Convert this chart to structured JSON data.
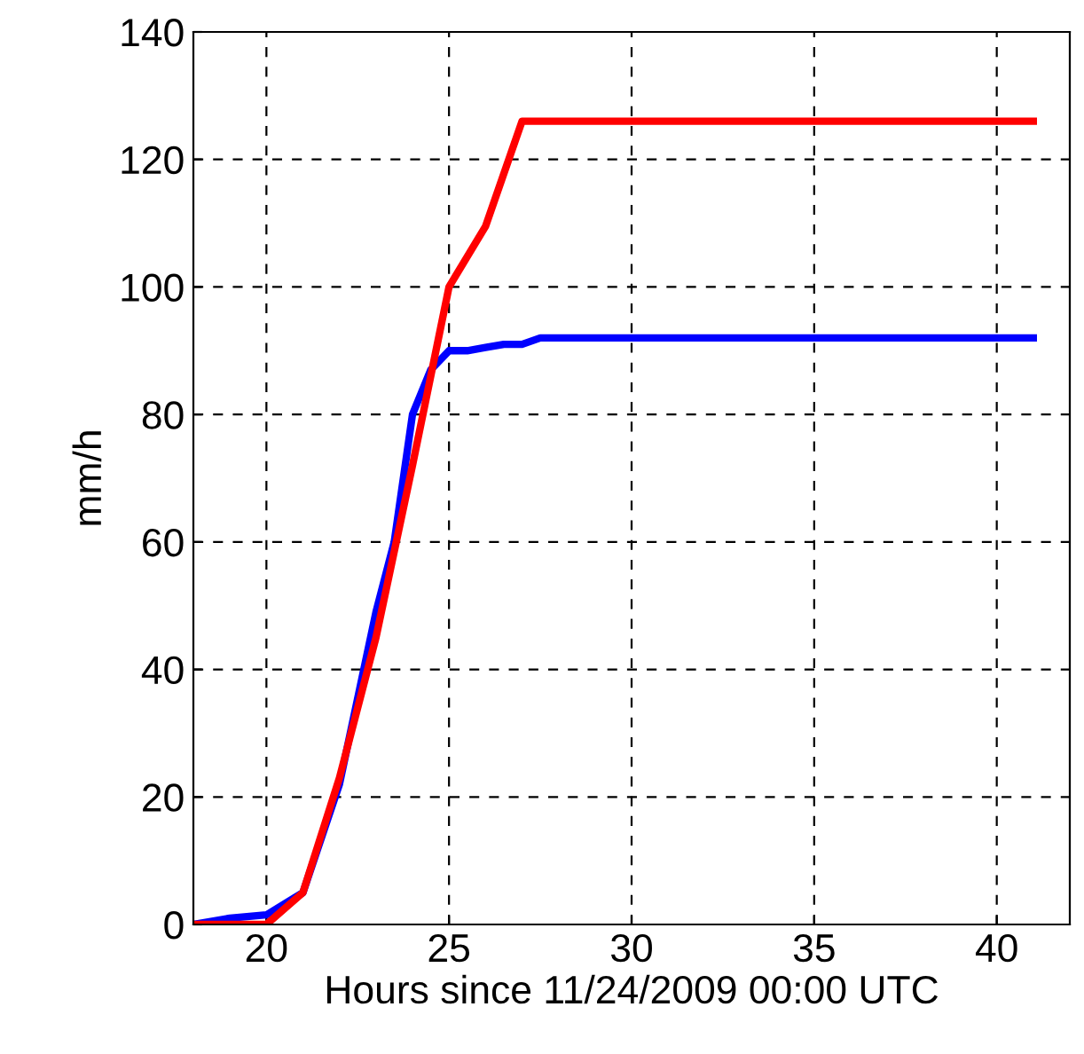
{
  "chart_data": {
    "type": "line",
    "xlabel": "Hours since 11/24/2009 00:00 UTC",
    "ylabel": "mm/h",
    "xlim": [
      18,
      42
    ],
    "xticks": [
      20,
      25,
      30,
      35,
      40
    ],
    "ylim": [
      0,
      140
    ],
    "yticks": [
      0,
      20,
      40,
      60,
      80,
      100,
      120,
      140
    ],
    "grid": true,
    "line_style": "solid",
    "series": [
      {
        "color": "#0000ff",
        "x": [
          18,
          19,
          20,
          21,
          22,
          23,
          23.5,
          24,
          24.5,
          25,
          25.5,
          26,
          26.5,
          27,
          27.5,
          41
        ],
        "values": [
          0,
          1,
          1.5,
          5,
          22,
          49,
          60,
          80,
          87,
          90,
          90,
          90.5,
          91,
          91,
          92,
          92
        ]
      },
      {
        "color": "#ff0000",
        "x": [
          18,
          19,
          20,
          21,
          22,
          23,
          24,
          25,
          26,
          27,
          41
        ],
        "values": [
          0,
          0,
          0,
          5,
          23,
          45,
          72,
          100,
          109.5,
          126,
          126
        ]
      }
    ]
  }
}
